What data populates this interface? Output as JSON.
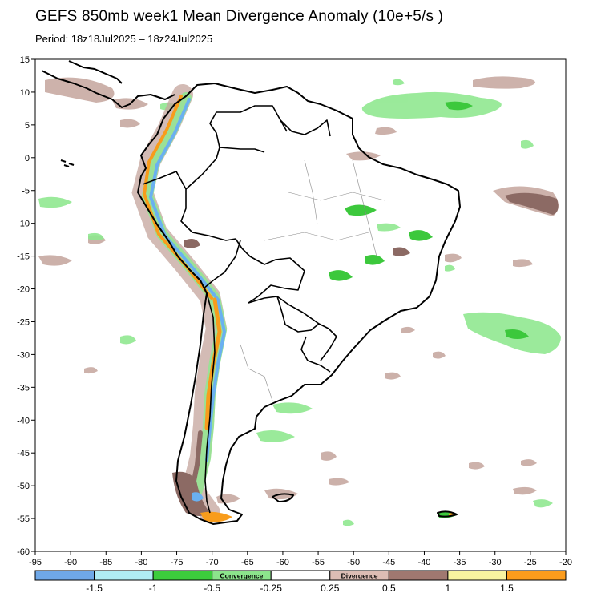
{
  "title": "GEFS 850mb week1 Mean Divergence Anomaly (10e+5/s )",
  "period": "Period: 18z18Jul2025 – 18z24Jul2025",
  "map": {
    "lon_range": [
      -95,
      -20
    ],
    "lat_range": [
      -60,
      15
    ],
    "x_ticks": [
      "-95",
      "-90",
      "-85",
      "-80",
      "-75",
      "-70",
      "-65",
      "-60",
      "-55",
      "-50",
      "-45",
      "-40",
      "-35",
      "-30",
      "-25",
      "-20"
    ],
    "y_ticks": [
      "15",
      "10",
      "5",
      "0",
      "-5",
      "-10",
      "-15",
      "-20",
      "-25",
      "-30",
      "-35",
      "-40",
      "-45",
      "-50",
      "-55",
      "-60"
    ]
  },
  "colorbar": {
    "colors": [
      "#6fa8e8",
      "#b0ecf4",
      "#3ccc3c",
      "#8ce48c",
      "#ffffff",
      "#dcbcb4",
      "#a07870",
      "#f8f4a0",
      "#fc9c1c"
    ],
    "labels": [
      "-1.5",
      "-1",
      "-0.5",
      "-0.25",
      "0.25",
      "0.5",
      "1",
      "1.5"
    ],
    "convergence_label": "Convergence",
    "divergence_label": "Divergence"
  },
  "fields": {
    "convergence_color": "#90e890",
    "divergence_color": "#c4a49c",
    "strong_convergence_color": "#3cc83c",
    "strong_divergence_color": "#8c6a64",
    "extreme_divergence_color": "#f89c1c",
    "extreme_convergence_color": "#6ab0f0"
  }
}
